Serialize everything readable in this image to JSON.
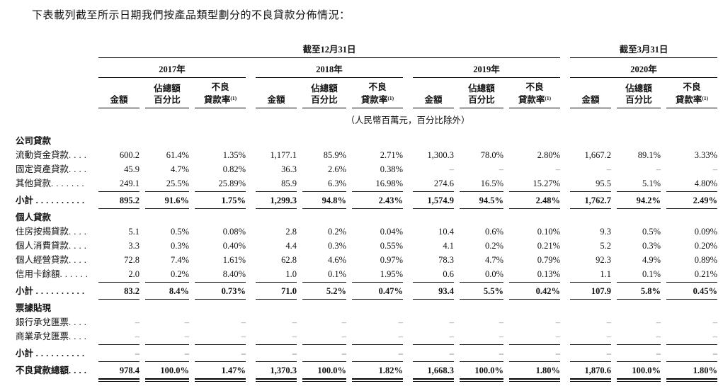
{
  "page": {
    "title": "下表載列截至所示日期我們按產品類型劃分的不良貸款分佈情況："
  },
  "table": {
    "spanners": [
      {
        "label": "截至12月31日"
      },
      {
        "label": "截至3月31日"
      }
    ],
    "year_groups": [
      "2017年",
      "2018年",
      "2019年",
      "2020年"
    ],
    "col_headers": {
      "amount": "金額",
      "pct_line1": "佔總額",
      "pct_line2": "百分比",
      "npl_line1": "不良",
      "npl_line2": "貸款率",
      "npl_sup": "(1)"
    },
    "unit_note": "（人民幣百萬元，百分比除外）",
    "rows": [
      {
        "type": "section",
        "label": "公司貸款"
      },
      {
        "type": "data",
        "label": "流動資金貸款",
        "leader": ". . . .",
        "cells": [
          "600.2",
          "61.4%",
          "1.35%",
          "1,177.1",
          "85.9%",
          "2.71%",
          "1,300.3",
          "78.0%",
          "2.80%",
          "1,667.2",
          "89.1%",
          "3.33%"
        ]
      },
      {
        "type": "data",
        "label": "固定資產貸款",
        "leader": ". . . .",
        "cells": [
          "45.9",
          "4.7%",
          "0.82%",
          "36.3",
          "2.6%",
          "0.38%",
          "–",
          "–",
          "–",
          "–",
          "–",
          "–"
        ]
      },
      {
        "type": "data",
        "label": "其他貸款",
        "leader": ". . . . . . .",
        "rule": true,
        "cells": [
          "249.1",
          "25.5%",
          "25.89%",
          "85.9",
          "6.3%",
          "16.98%",
          "274.6",
          "16.5%",
          "15.27%",
          "95.5",
          "5.1%",
          "4.80%"
        ]
      },
      {
        "type": "subtotal",
        "label": "小計",
        "leader": " . . . . . . . . . .",
        "rule": true,
        "cells": [
          "895.2",
          "91.6%",
          "1.75%",
          "1,299.3",
          "94.8%",
          "2.43%",
          "1,574.9",
          "94.5%",
          "2.48%",
          "1,762.7",
          "94.2%",
          "2.49%"
        ]
      },
      {
        "type": "section",
        "label": "個人貸款"
      },
      {
        "type": "data",
        "label": "住房按揭貸款",
        "leader": ". . . .",
        "cells": [
          "5.1",
          "0.5%",
          "0.08%",
          "2.8",
          "0.2%",
          "0.04%",
          "10.4",
          "0.6%",
          "0.10%",
          "9.3",
          "0.5%",
          "0.09%"
        ]
      },
      {
        "type": "data",
        "label": "個人消費貸款",
        "leader": ". . . .",
        "cells": [
          "3.3",
          "0.3%",
          "0.40%",
          "4.4",
          "0.3%",
          "0.55%",
          "4.1",
          "0.2%",
          "0.21%",
          "5.2",
          "0.3%",
          "0.20%"
        ]
      },
      {
        "type": "data",
        "label": "個人經營貸款",
        "leader": ". . . .",
        "cells": [
          "72.8",
          "7.4%",
          "1.61%",
          "62.8",
          "4.6%",
          "0.97%",
          "78.3",
          "4.7%",
          "0.79%",
          "92.3",
          "4.9%",
          "0.89%"
        ]
      },
      {
        "type": "data",
        "label": "信用卡餘額",
        "leader": ". . . . . .",
        "rule": true,
        "cells": [
          "2.0",
          "0.2%",
          "8.40%",
          "1.0",
          "0.1%",
          "1.95%",
          "0.6",
          "0.0%",
          "0.13%",
          "1.1",
          "0.1%",
          "0.21%"
        ]
      },
      {
        "type": "subtotal",
        "label": "小計",
        "leader": " . . . . . . . . . .",
        "rule": true,
        "cells": [
          "83.2",
          "8.4%",
          "0.73%",
          "71.0",
          "5.2%",
          "0.47%",
          "93.4",
          "5.5%",
          "0.42%",
          "107.9",
          "5.8%",
          "0.45%"
        ]
      },
      {
        "type": "section",
        "label": "票據貼現"
      },
      {
        "type": "data",
        "label": "銀行承兌匯票",
        "leader": ". . . .",
        "cells": [
          "–",
          "–",
          "–",
          "–",
          "–",
          "–",
          "–",
          "–",
          "–",
          "–",
          "–",
          "–"
        ]
      },
      {
        "type": "data",
        "label": "商業承兌匯票",
        "leader": ". . . .",
        "rule": true,
        "cells": [
          "–",
          "–",
          "–",
          "–",
          "–",
          "–",
          "–",
          "–",
          "–",
          "–",
          "–",
          "–"
        ]
      },
      {
        "type": "subtotal",
        "label": "小計",
        "leader": " . . . . . . . . . .",
        "rule": true,
        "cells": [
          "–",
          "–",
          "–",
          "–",
          "–",
          "–",
          "–",
          "–",
          "–",
          "–",
          "–",
          "–"
        ]
      },
      {
        "type": "total",
        "label": "不良貸款總額",
        "leader": ". . . .",
        "cells": [
          "978.4",
          "100.0%",
          "1.47%",
          "1,370.3",
          "100.0%",
          "1.82%",
          "1,668.3",
          "100.0%",
          "1.80%",
          "1,870.6",
          "100.0%",
          "1.80%"
        ]
      }
    ]
  }
}
